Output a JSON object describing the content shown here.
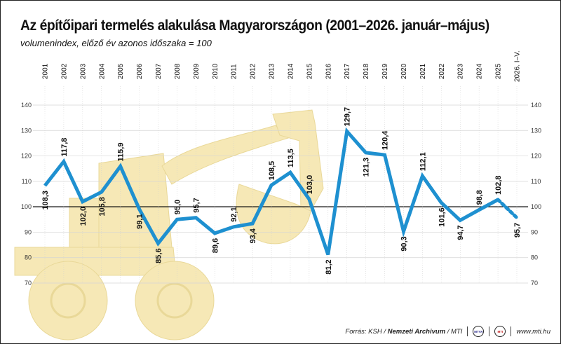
{
  "header": {
    "title": "Az építőipari termelés alakulása Magyarországon (2001–2026. január–május)",
    "subtitle": "volumenindex, előző év azonos időszaka = 100"
  },
  "footer": {
    "source_prefix": "Forrás: KSH / ",
    "source_bold": "Nemzeti Archivum",
    "source_suffix": " / MTI",
    "logo1": "MTVA",
    "logo2": "MTI",
    "website": "www.mti.hu"
  },
  "colors": {
    "line": "#1e90d0",
    "excavator": "#f6e8b6",
    "grid": "#d4d4d4",
    "baseline": "#000000",
    "text": "#111111"
  },
  "chart_data": {
    "type": "line",
    "title": "Az építőipari termelés alakulása Magyarországon (2001–2026. január–május)",
    "subtitle": "volumenindex, előző év azonos időszaka = 100",
    "categories": [
      "2001",
      "2002",
      "2003",
      "2004",
      "2005",
      "2006",
      "2007",
      "2008",
      "2009",
      "2010",
      "2011",
      "2012",
      "2013",
      "2014",
      "2015",
      "2016",
      "2017",
      "2018",
      "2019",
      "2020",
      "2021",
      "2022",
      "2023",
      "2024",
      "2025",
      "2026. I–V."
    ],
    "series": [
      {
        "values": [
          108.3,
          117.8,
          102.0,
          105.8,
          115.9,
          99.1,
          85.6,
          95.0,
          95.7,
          89.6,
          92.1,
          93.4,
          108.5,
          113.5,
          103.0,
          81.2,
          129.7,
          121.3,
          120.4,
          90.3,
          112.1,
          101.6,
          94.7,
          98.8,
          102.8,
          95.7
        ],
        "labels": [
          "108,3",
          "117,8",
          "102,0",
          "105,8",
          "115,9",
          "99,1",
          "85,6",
          "95,0",
          "95,7",
          "89,6",
          "92,1",
          "93,4",
          "108,5",
          "113,5",
          "103,0",
          "81,2",
          "129,7",
          "121,3",
          "120,4",
          "90,3",
          "112,1",
          "101,6",
          "94,7",
          "98,8",
          "102,8",
          "95,7"
        ],
        "dashed_last": true
      }
    ],
    "yticks": [
      70,
      80,
      90,
      100,
      110,
      120,
      130,
      140
    ],
    "ylim": [
      70,
      140
    ],
    "reference_line": 100,
    "grid": true
  }
}
